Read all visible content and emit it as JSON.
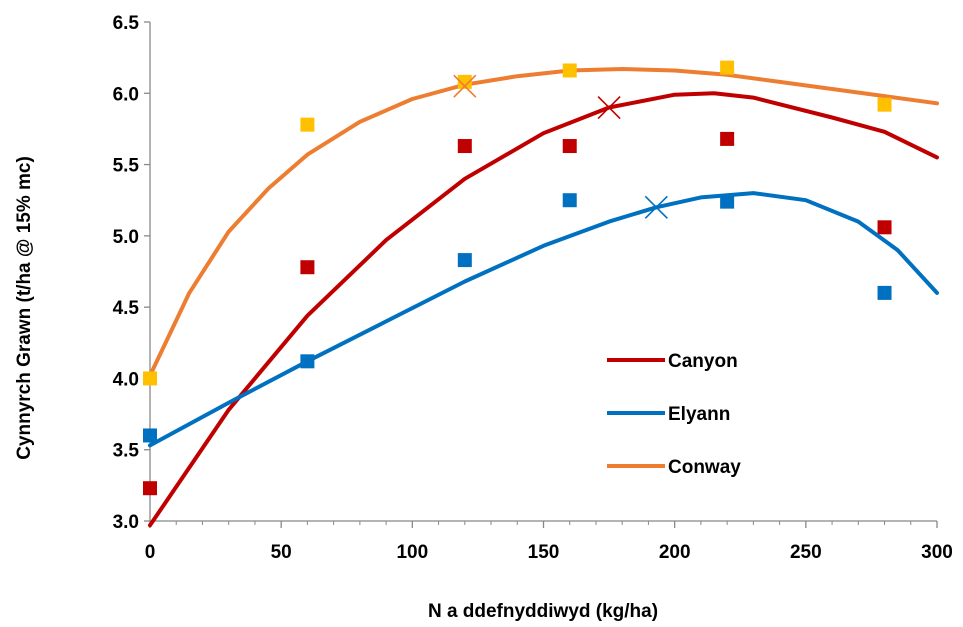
{
  "chart_data": {
    "type": "scatter",
    "title": "",
    "xlabel": "N a ddefnyddiwyd (kg/ha)",
    "ylabel": "Cynnyrch Grawn (t/ha @ 15% mc)",
    "xlim": [
      0,
      300
    ],
    "ylim": [
      3.0,
      6.5
    ],
    "xticks": [
      0,
      50,
      100,
      150,
      200,
      250,
      300
    ],
    "yticks": [
      "3.0",
      "3.5",
      "4.0",
      "4.5",
      "5.0",
      "5.5",
      "6.0",
      "6.5"
    ],
    "grid": false,
    "legend_position": "lower-right",
    "series": [
      {
        "name": "Canyon",
        "color": "#C00000",
        "points": [
          [
            0,
            3.23
          ],
          [
            60,
            4.78
          ],
          [
            120,
            5.63
          ],
          [
            160,
            5.63
          ],
          [
            220,
            5.68
          ],
          [
            280,
            5.06
          ]
        ],
        "fit": [
          [
            0,
            2.97
          ],
          [
            30,
            3.78
          ],
          [
            60,
            4.44
          ],
          [
            90,
            4.97
          ],
          [
            120,
            5.4
          ],
          [
            150,
            5.72
          ],
          [
            175,
            5.9
          ],
          [
            200,
            5.99
          ],
          [
            215,
            6.0
          ],
          [
            230,
            5.97
          ],
          [
            260,
            5.83
          ],
          [
            280,
            5.73
          ],
          [
            300,
            5.55
          ]
        ],
        "optimum": [
          175,
          5.9
        ]
      },
      {
        "name": "Elyann",
        "color": "#0070C0",
        "points": [
          [
            0,
            3.6
          ],
          [
            60,
            4.12
          ],
          [
            120,
            4.83
          ],
          [
            160,
            5.25
          ],
          [
            220,
            5.24
          ],
          [
            280,
            4.6
          ]
        ],
        "fit": [
          [
            0,
            3.53
          ],
          [
            30,
            3.83
          ],
          [
            60,
            4.12
          ],
          [
            90,
            4.4
          ],
          [
            120,
            4.68
          ],
          [
            150,
            4.93
          ],
          [
            175,
            5.1
          ],
          [
            193,
            5.2
          ],
          [
            210,
            5.27
          ],
          [
            230,
            5.3
          ],
          [
            250,
            5.25
          ],
          [
            270,
            5.1
          ],
          [
            285,
            4.9
          ],
          [
            300,
            4.6
          ]
        ],
        "optimum": [
          193,
          5.2
        ]
      },
      {
        "name": "Conway",
        "color": "#ED7D31",
        "marker_color": "#FFC000",
        "points": [
          [
            0,
            4.0
          ],
          [
            60,
            5.78
          ],
          [
            120,
            6.08
          ],
          [
            160,
            6.16
          ],
          [
            220,
            6.18
          ],
          [
            280,
            5.92
          ]
        ],
        "fit": [
          [
            0,
            4.02
          ],
          [
            15,
            4.6
          ],
          [
            30,
            5.03
          ],
          [
            45,
            5.33
          ],
          [
            60,
            5.57
          ],
          [
            80,
            5.8
          ],
          [
            100,
            5.96
          ],
          [
            120,
            6.06
          ],
          [
            140,
            6.12
          ],
          [
            160,
            6.16
          ],
          [
            180,
            6.17
          ],
          [
            200,
            6.16
          ],
          [
            220,
            6.13
          ],
          [
            240,
            6.08
          ],
          [
            260,
            6.03
          ],
          [
            280,
            5.98
          ],
          [
            300,
            5.93
          ]
        ],
        "optimum": [
          120,
          6.05
        ]
      }
    ]
  }
}
